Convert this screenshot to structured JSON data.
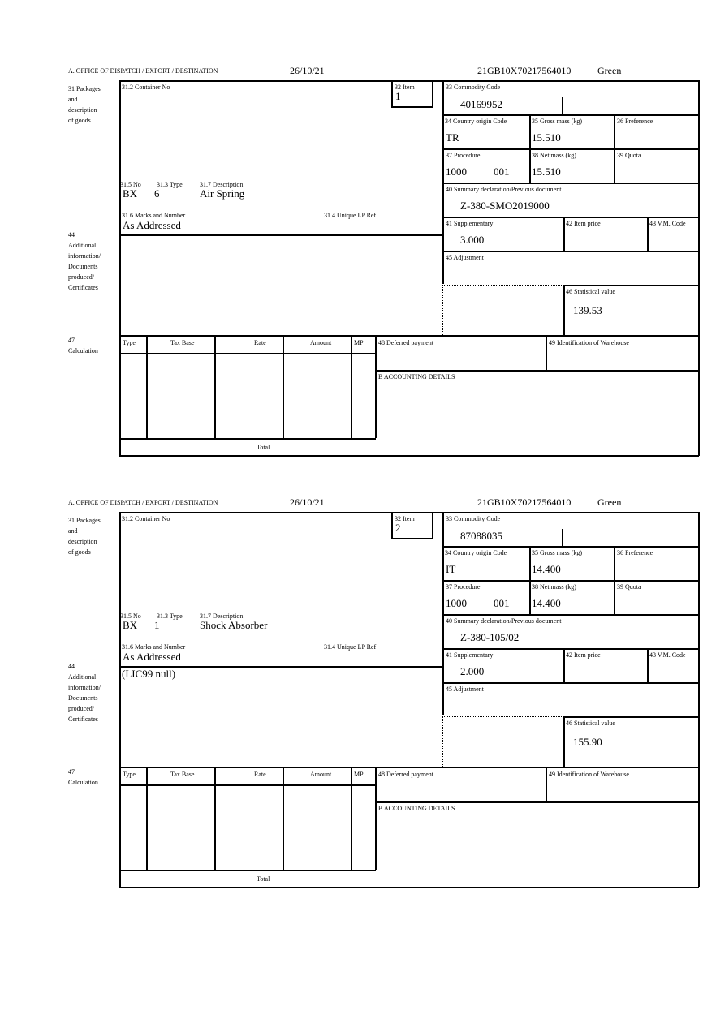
{
  "labels": {
    "header": "A. OFFICE OF DISPATCH / EXPORT / DESTINATION",
    "packages": "31 Packages\nand\ndescription\nof goods",
    "container": "31.2 Container No",
    "item": "32 Item",
    "no": "31.5 No",
    "type": "31.3 Type",
    "description": "31.7 Description",
    "marks": "31.6 Marks and Number",
    "unique_ref": "31.4 Unique LP Ref",
    "commodity": "33 Commodity Code",
    "country": "34 Country origin Code",
    "gross": "35 Gross mass (kg)",
    "preference": "36 Preference",
    "procedure": "37 Procedure",
    "net": "38 Net mass (kg)",
    "quota": "39 Quota",
    "summary": "40 Summary declaration/Previous document",
    "supplementary": "41 Supplementary",
    "item_price": "42 Item price",
    "vm_code": "43 V.M. Code",
    "additional": "44\nAdditional\ninformation/\nDocuments\nproduced/\nCertificates",
    "adjustment": "45 Adjustment",
    "statistical": "46 Statistical value",
    "calculation": "47\nCalculation",
    "calc_type": "Type",
    "calc_tax_base": "Tax Base",
    "calc_rate": "Rate",
    "calc_amount": "Amount",
    "calc_mp": "MP",
    "deferred": "48 Deferred payment",
    "warehouse": "49 Identification of Warehouse",
    "accounting": "B ACCOUNTING DETAILS",
    "total": "Total"
  },
  "items": [
    {
      "date": "26/10/21",
      "reference": "21GB10X70217564010",
      "route": "Green",
      "item_no": "1",
      "no": "BX",
      "type": "6",
      "description": "Air Spring",
      "marks": "As Addressed",
      "commodity_code": "40169952",
      "country": "TR",
      "gross_mass": "15.510",
      "procedure": "1000",
      "procedure_code": "001",
      "net_mass": "15.510",
      "previous_document": "Z-380-SMO2019000",
      "supplementary": "3.000",
      "additional_info": "",
      "statistical_value": "139.53"
    },
    {
      "date": "26/10/21",
      "reference": "21GB10X70217564010",
      "route": "Green",
      "item_no": "2",
      "no": "BX",
      "type": "1",
      "description": "Shock Absorber",
      "marks": "As Addressed",
      "commodity_code": "87088035",
      "country": "IT",
      "gross_mass": "14.400",
      "procedure": "1000",
      "procedure_code": "001",
      "net_mass": "14.400",
      "previous_document": "Z-380-105/02",
      "supplementary": "2.000",
      "additional_info": "(LIC99 null)",
      "statistical_value": "155.90"
    }
  ]
}
